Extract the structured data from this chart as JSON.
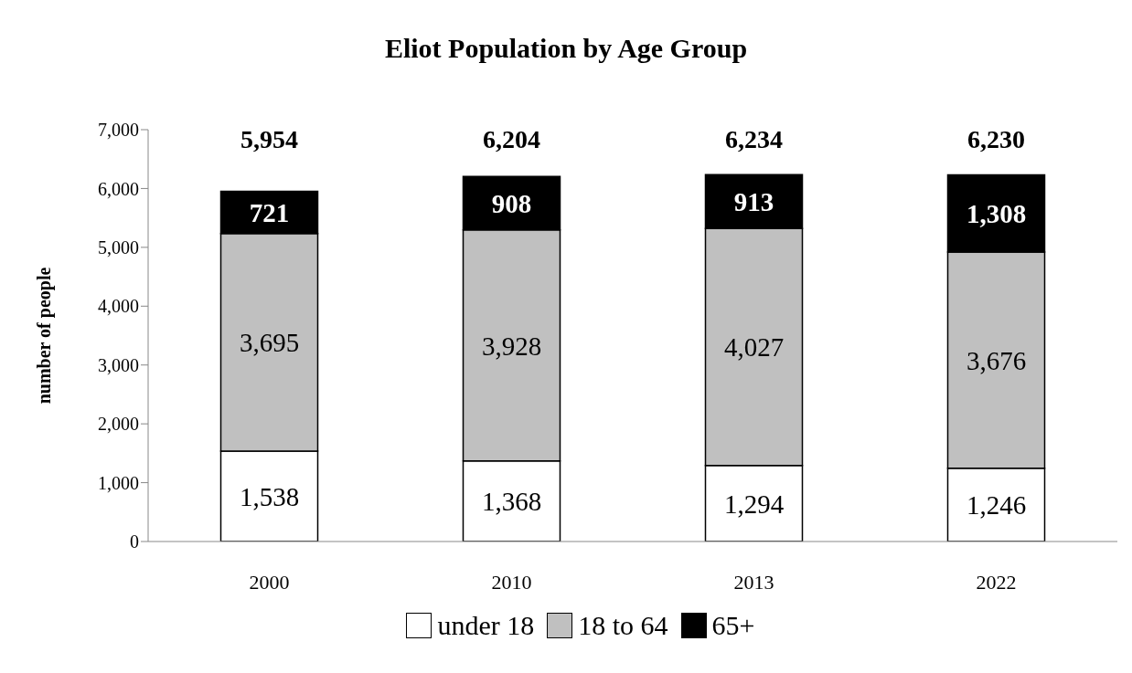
{
  "chart_data": {
    "type": "bar",
    "title": "Eliot Population by Age Group",
    "ylabel": "number of people",
    "categories": [
      "2000",
      "2010",
      "2013",
      "2022"
    ],
    "stacked": true,
    "series": [
      {
        "name": "under 18",
        "color": "#ffffff",
        "values": [
          1538,
          1368,
          1294,
          1246
        ],
        "value_labels": [
          "1,538",
          "1,368",
          "1,294",
          "1,246"
        ]
      },
      {
        "name": "18 to 64",
        "color": "#c0c0c0",
        "values": [
          3695,
          3928,
          4027,
          3676
        ],
        "value_labels": [
          "3,695",
          "3,928",
          "4,027",
          "3,676"
        ]
      },
      {
        "name": "65+",
        "color": "#000000",
        "values": [
          721,
          908,
          913,
          1308
        ],
        "value_labels": [
          "721",
          "908",
          "913",
          "1,308"
        ]
      }
    ],
    "totals": [
      "5,954",
      "6,204",
      "6,234",
      "6,230"
    ],
    "ylim": [
      0,
      7000
    ],
    "yticks": [
      {
        "value": 0,
        "label": "0"
      },
      {
        "value": 1000,
        "label": "1,000"
      },
      {
        "value": 2000,
        "label": "2,000"
      },
      {
        "value": 3000,
        "label": "3,000"
      },
      {
        "value": 4000,
        "label": "4,000"
      },
      {
        "value": 5000,
        "label": "5,000"
      },
      {
        "value": 6000,
        "label": "6,000"
      },
      {
        "value": 7000,
        "label": "7,000"
      }
    ],
    "grid": false,
    "legend": "bottom"
  }
}
